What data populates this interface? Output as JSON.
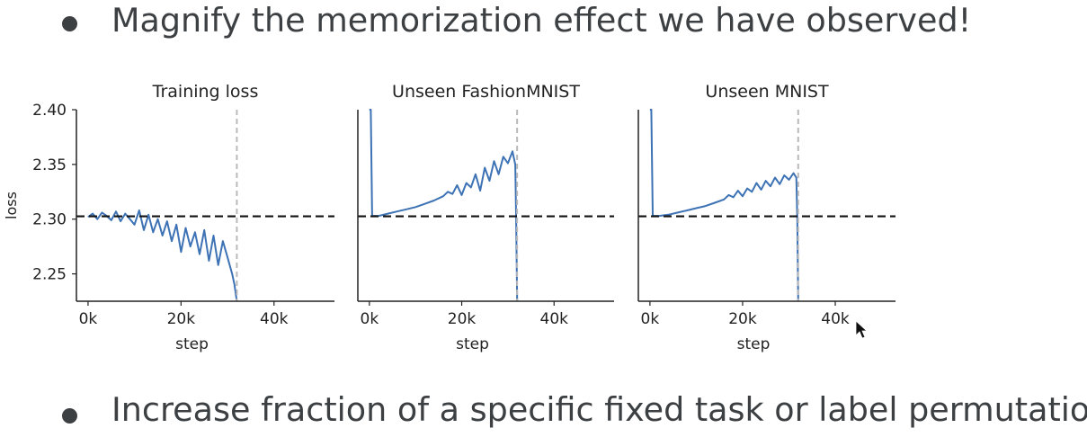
{
  "slide": {
    "bullets": [
      "Magnify the memorization effect we have observed!",
      "Increase fraction of a specific fixed task or label permutation"
    ]
  },
  "colors": {
    "line": "#3d72b5",
    "baseline": "#111111",
    "vline": "#b9b9b9",
    "text": "#3c4043"
  },
  "chart_data": [
    {
      "type": "line",
      "title": "Training loss",
      "xlabel": "step",
      "ylabel": "loss",
      "xlim": [
        -2500,
        53000
      ],
      "ylim": [
        2.225,
        2.4
      ],
      "xticks": [
        0,
        20000,
        40000
      ],
      "xtick_labels": [
        "0k",
        "20k",
        "40k"
      ],
      "yticks": [
        2.25,
        2.3,
        2.35,
        2.4
      ],
      "ytick_labels": [
        "2.25",
        "2.30",
        "2.35",
        "2.40"
      ],
      "hline": 2.3026,
      "vline": 32000,
      "series": [
        {
          "x": [
            0,
            1000,
            2000,
            3000,
            4000,
            5000,
            6000,
            7000,
            8000,
            9000,
            10000,
            11000,
            12000,
            13000,
            14000,
            15000,
            16000,
            17000,
            18000,
            19000,
            20000,
            21000,
            22000,
            23000,
            24000,
            25000,
            26000,
            27000,
            28000,
            29000,
            30000,
            31000,
            31500,
            32000
          ],
          "y": [
            2.302,
            2.305,
            2.3,
            2.306,
            2.303,
            2.299,
            2.307,
            2.298,
            2.305,
            2.3,
            2.295,
            2.308,
            2.29,
            2.304,
            2.288,
            2.3,
            2.285,
            2.298,
            2.28,
            2.295,
            2.27,
            2.292,
            2.275,
            2.288,
            2.268,
            2.29,
            2.262,
            2.285,
            2.258,
            2.28,
            2.265,
            2.25,
            2.24,
            2.225
          ]
        }
      ]
    },
    {
      "type": "line",
      "title": "Unseen FashionMNIST",
      "xlabel": "step",
      "ylabel": "",
      "xlim": [
        -2500,
        53000
      ],
      "ylim": [
        2.225,
        2.4
      ],
      "xticks": [
        0,
        20000,
        40000
      ],
      "xtick_labels": [
        "0k",
        "20k",
        "40k"
      ],
      "hline": 2.3026,
      "vline": 32000,
      "series": [
        {
          "x": [
            0,
            300,
            600,
            2000,
            4000,
            6000,
            8000,
            10000,
            12000,
            14000,
            16000,
            17000,
            18000,
            19000,
            20000,
            21000,
            22000,
            23000,
            24000,
            25000,
            26000,
            27000,
            28000,
            29000,
            30000,
            31000,
            31600,
            31800,
            32000
          ],
          "y": [
            2.4,
            2.4,
            2.303,
            2.303,
            2.305,
            2.307,
            2.309,
            2.311,
            2.314,
            2.317,
            2.321,
            2.325,
            2.323,
            2.331,
            2.322,
            2.333,
            2.329,
            2.341,
            2.326,
            2.347,
            2.335,
            2.353,
            2.341,
            2.357,
            2.351,
            2.362,
            2.35,
            2.3,
            2.225
          ]
        }
      ]
    },
    {
      "type": "line",
      "title": "Unseen MNIST",
      "xlabel": "step",
      "ylabel": "",
      "xlim": [
        -2500,
        53000
      ],
      "ylim": [
        2.225,
        2.4
      ],
      "xticks": [
        0,
        20000,
        40000
      ],
      "xtick_labels": [
        "0k",
        "20k",
        "40k"
      ],
      "hline": 2.3026,
      "vline": 32000,
      "series": [
        {
          "x": [
            0,
            300,
            600,
            2000,
            4000,
            6000,
            8000,
            10000,
            12000,
            14000,
            16000,
            17000,
            18000,
            19000,
            20000,
            21000,
            22000,
            23000,
            24000,
            25000,
            26000,
            27000,
            28000,
            29000,
            30000,
            31000,
            31600,
            31800,
            32000
          ],
          "y": [
            2.4,
            2.4,
            2.303,
            2.303,
            2.304,
            2.306,
            2.308,
            2.31,
            2.312,
            2.315,
            2.318,
            2.322,
            2.32,
            2.326,
            2.321,
            2.328,
            2.325,
            2.333,
            2.327,
            2.335,
            2.33,
            2.338,
            2.332,
            2.34,
            2.336,
            2.342,
            2.338,
            2.3,
            2.225
          ]
        }
      ]
    }
  ]
}
